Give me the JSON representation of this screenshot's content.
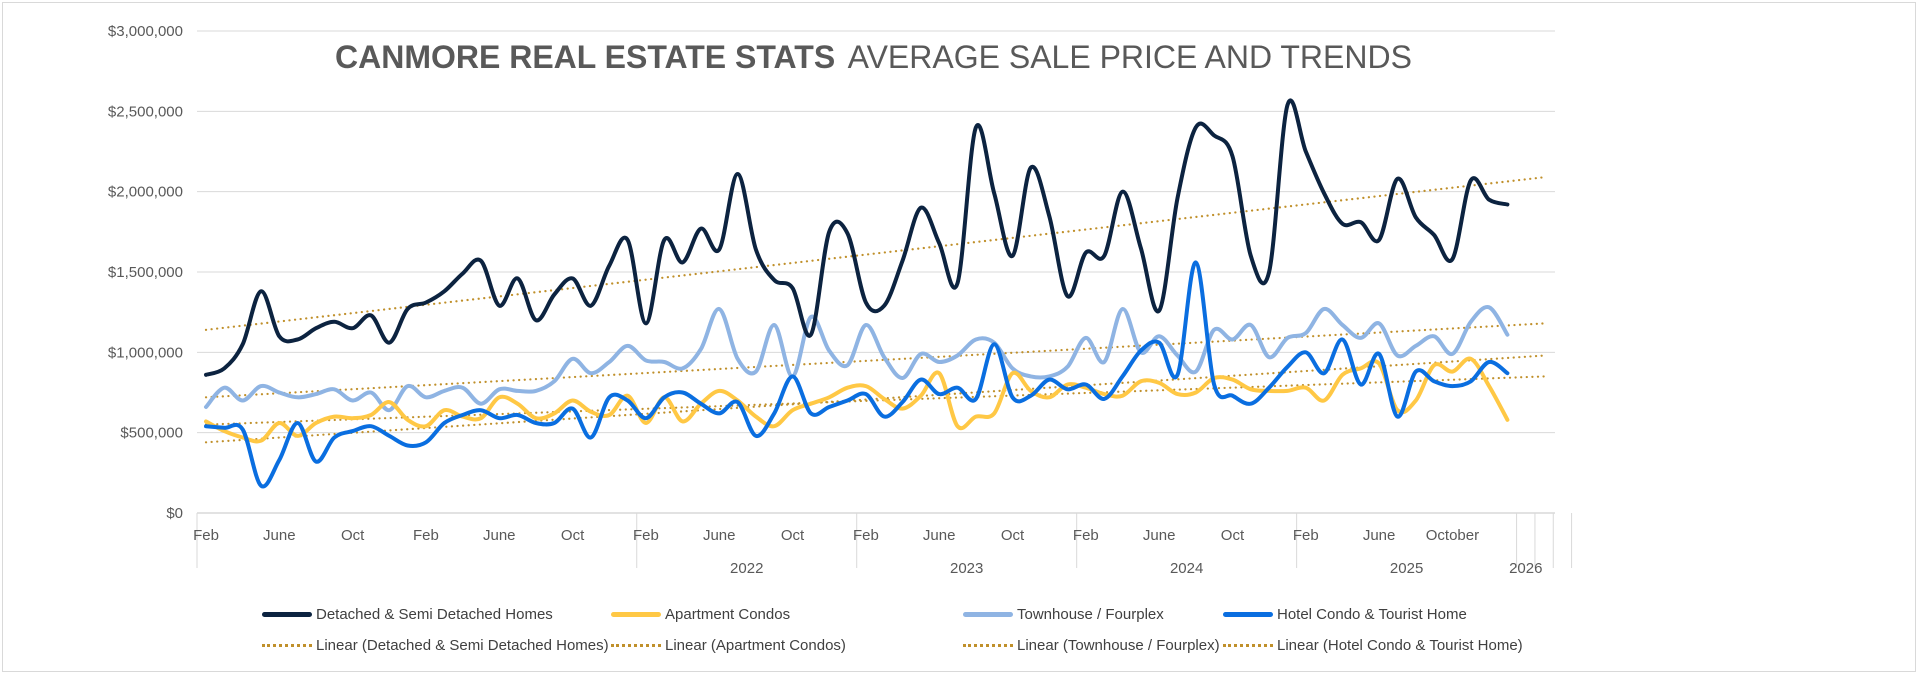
{
  "chart_data": {
    "type": "line",
    "title_bold": "CANMORE REAL ESTATE STATS",
    "title_light": "AVERAGE SALE PRICE AND TRENDS",
    "xlabel": "",
    "ylabel": "",
    "ylim": [
      0,
      3000000
    ],
    "y_ticks": [
      "$0",
      "$500,000",
      "$1,000,000",
      "$1,500,000",
      "$2,000,000",
      "$2,500,000",
      "$3,000,000"
    ],
    "y_tick_values": [
      0,
      500000,
      1000000,
      1500000,
      2000000,
      2500000,
      3000000
    ],
    "grid": true,
    "legend_position": "bottom",
    "x_month_ticks": [
      {
        "label": "Feb",
        "month_index": 0
      },
      {
        "label": "June",
        "month_index": 4
      },
      {
        "label": "Oct",
        "month_index": 8
      },
      {
        "label": "Feb",
        "month_index": 12
      },
      {
        "label": "June",
        "month_index": 16
      },
      {
        "label": "Oct",
        "month_index": 20
      },
      {
        "label": "Feb",
        "month_index": 24
      },
      {
        "label": "June",
        "month_index": 28
      },
      {
        "label": "Oct",
        "month_index": 32
      },
      {
        "label": "Feb",
        "month_index": 36
      },
      {
        "label": "June",
        "month_index": 40
      },
      {
        "label": "Oct",
        "month_index": 44
      },
      {
        "label": "Feb",
        "month_index": 48
      },
      {
        "label": "June",
        "month_index": 52
      },
      {
        "label": "Oct",
        "month_index": 56
      },
      {
        "label": "Feb",
        "month_index": 60
      },
      {
        "label": "June",
        "month_index": 64
      },
      {
        "label": "October",
        "month_index": 68
      }
    ],
    "x_year_labels": [
      {
        "label": "2022",
        "from": 23.5,
        "to": 35.5
      },
      {
        "label": "2023",
        "from": 35.5,
        "to": 47.5
      },
      {
        "label": "2024",
        "from": 47.5,
        "to": 59.5
      },
      {
        "label": "2025",
        "from": 59.5,
        "to": 71.5
      },
      {
        "label": "2026",
        "from": 71.5,
        "to": 72.5
      }
    ],
    "x_separators": [
      23.5,
      35.5,
      47.5,
      59.5,
      71.5,
      72.5,
      73.5,
      74.5
    ],
    "n_months": 72,
    "series": [
      {
        "name": "Detached & Semi Detached Homes",
        "color": "#0c2340",
        "values": [
          860000,
          900000,
          1050000,
          1380000,
          1100000,
          1080000,
          1150000,
          1190000,
          1150000,
          1230000,
          1060000,
          1270000,
          1310000,
          1380000,
          1490000,
          1570000,
          1290000,
          1460000,
          1200000,
          1360000,
          1460000,
          1290000,
          1540000,
          1700000,
          1180000,
          1700000,
          1560000,
          1770000,
          1640000,
          2110000,
          1640000,
          1450000,
          1400000,
          1110000,
          1750000,
          1740000,
          1310000,
          1290000,
          1570000,
          1900000,
          1680000,
          1430000,
          2400000,
          1990000,
          1600000,
          2150000,
          1850000,
          1350000,
          1620000,
          1600000,
          2000000,
          1650000,
          1260000,
          1960000,
          2400000,
          2350000,
          2220000,
          1600000,
          1500000,
          2540000,
          2250000,
          1990000,
          1800000,
          1810000,
          1700000,
          2080000,
          1840000,
          1730000,
          1580000,
          2070000,
          1950000,
          1920000
        ]
      },
      {
        "name": "Apartment Condos",
        "color": "#ffc845",
        "values": [
          570000,
          510000,
          470000,
          450000,
          560000,
          480000,
          560000,
          600000,
          590000,
          610000,
          690000,
          580000,
          540000,
          640000,
          600000,
          590000,
          720000,
          680000,
          590000,
          620000,
          700000,
          630000,
          610000,
          730000,
          560000,
          720000,
          570000,
          680000,
          760000,
          700000,
          600000,
          540000,
          640000,
          680000,
          720000,
          780000,
          790000,
          710000,
          650000,
          730000,
          870000,
          540000,
          600000,
          620000,
          870000,
          760000,
          720000,
          800000,
          780000,
          740000,
          730000,
          820000,
          810000,
          740000,
          750000,
          840000,
          830000,
          770000,
          760000,
          760000,
          780000,
          700000,
          860000,
          900000,
          930000,
          640000,
          700000,
          920000,
          880000,
          960000,
          790000,
          580000
        ]
      },
      {
        "name": "Townhouse / Fourplex",
        "color": "#8fb4e3",
        "values": [
          660000,
          780000,
          700000,
          790000,
          750000,
          720000,
          740000,
          770000,
          700000,
          750000,
          640000,
          790000,
          720000,
          760000,
          780000,
          680000,
          770000,
          760000,
          760000,
          820000,
          960000,
          870000,
          940000,
          1040000,
          950000,
          940000,
          900000,
          1020000,
          1270000,
          960000,
          880000,
          1170000,
          850000,
          1220000,
          1010000,
          920000,
          1170000,
          970000,
          840000,
          990000,
          940000,
          980000,
          1080000,
          1060000,
          900000,
          850000,
          850000,
          910000,
          1090000,
          940000,
          1270000,
          1000000,
          1100000,
          980000,
          880000,
          1140000,
          1080000,
          1170000,
          970000,
          1090000,
          1120000,
          1270000,
          1170000,
          1090000,
          1180000,
          980000,
          1040000,
          1100000,
          990000,
          1190000,
          1280000,
          1110000
        ]
      },
      {
        "name": "Hotel Condo & Tourist Home",
        "color": "#0a6ee0",
        "values": [
          540000,
          530000,
          520000,
          170000,
          330000,
          560000,
          320000,
          470000,
          510000,
          540000,
          480000,
          420000,
          440000,
          560000,
          610000,
          640000,
          590000,
          610000,
          560000,
          560000,
          650000,
          470000,
          720000,
          700000,
          590000,
          720000,
          750000,
          680000,
          620000,
          690000,
          480000,
          620000,
          850000,
          620000,
          660000,
          700000,
          740000,
          600000,
          690000,
          830000,
          740000,
          780000,
          710000,
          1050000,
          720000,
          730000,
          830000,
          770000,
          800000,
          710000,
          850000,
          1010000,
          1060000,
          860000,
          1560000,
          800000,
          730000,
          680000,
          780000,
          910000,
          1000000,
          870000,
          1080000,
          800000,
          990000,
          600000,
          880000,
          820000,
          790000,
          820000,
          940000,
          870000
        ]
      }
    ],
    "trendlines": [
      {
        "name": "Linear (Detached & Semi Detached Homes)",
        "start": 1140000,
        "end": 2090000
      },
      {
        "name": "Linear (Apartment Condos)",
        "start": 550000,
        "end": 850000
      },
      {
        "name": "Linear (Townhouse / Fourplex)",
        "start": 720000,
        "end": 1180000
      },
      {
        "name": "Linear (Hotel Condo & Tourist Home)",
        "start": 440000,
        "end": 980000
      }
    ],
    "trendline_color": "#c0902b"
  }
}
